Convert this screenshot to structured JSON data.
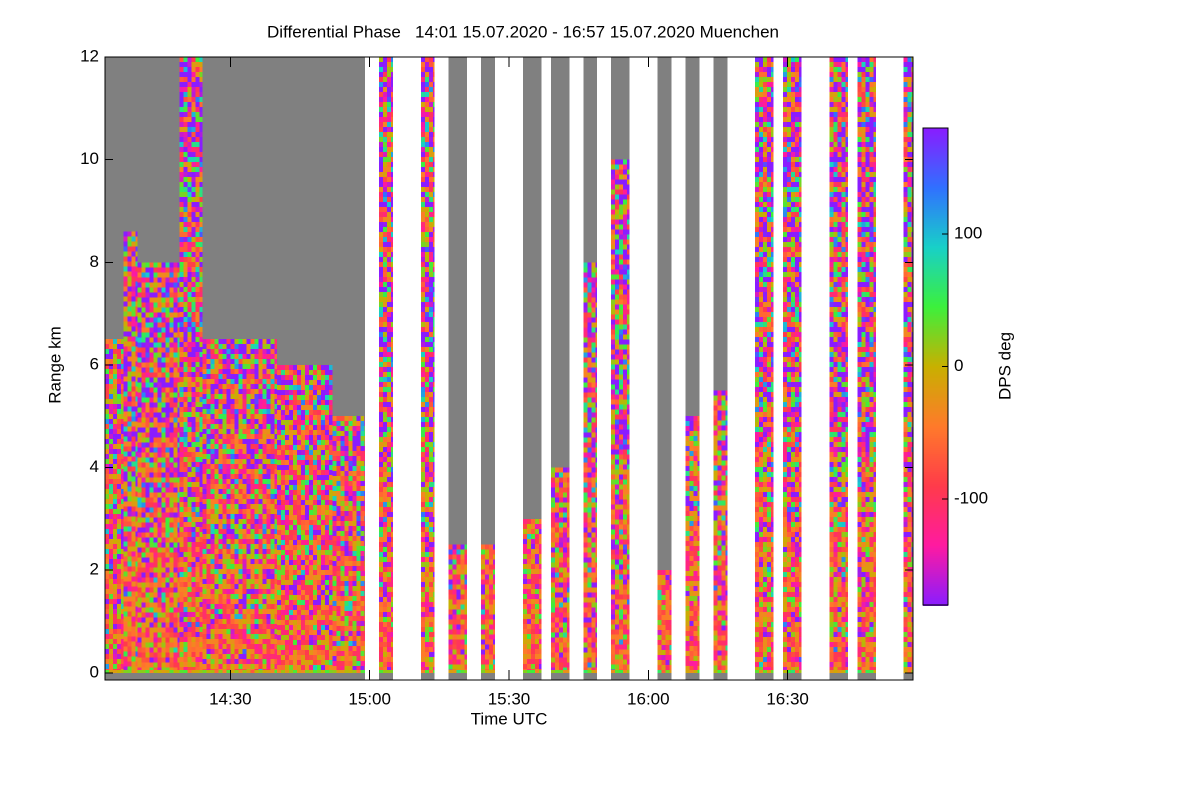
{
  "chart_data": {
    "type": "time-height",
    "title": "Differential Phase   14:01 15.07.2020 - 16:57 15.07.2020 Muenchen",
    "x_label": "Time UTC",
    "y_label": "Range km",
    "colorbar_label": "DPS deg",
    "xlim": [
      "14:03",
      "16:57"
    ],
    "xticks": [
      "14:30",
      "15:00",
      "15:30",
      "16:00",
      "16:30"
    ],
    "ylim": [
      -0.14,
      12
    ],
    "yticks": [
      0,
      2,
      4,
      6,
      8,
      10,
      12
    ],
    "zlim": [
      -180,
      180
    ],
    "zticks": [
      -100,
      0,
      100
    ],
    "colormap": [
      "#8a1cff",
      "#ff1aa0",
      "#ff3b4a",
      "#ff7a2a",
      "#c8b000",
      "#3cf03c",
      "#18d0c8",
      "#3070ff",
      "#8a1cff"
    ],
    "no_echo_color": "#808080",
    "scans": [
      {
        "start": "14:03",
        "end": "14:07",
        "top": 6.5
      },
      {
        "start": "14:07",
        "end": "14:10",
        "top": 8.6
      },
      {
        "start": "14:10",
        "end": "14:19",
        "top": 8.0
      },
      {
        "start": "14:19",
        "end": "14:24",
        "top": 12
      },
      {
        "start": "14:24",
        "end": "14:40",
        "top": 6.5
      },
      {
        "start": "14:40",
        "end": "14:52",
        "top": 6.0
      },
      {
        "start": "14:52",
        "end": "14:59",
        "top": 5.0
      },
      {
        "start": "15:02",
        "end": "15:05",
        "top": 12
      },
      {
        "start": "15:11",
        "end": "15:14",
        "top": 12
      },
      {
        "start": "15:17",
        "end": "15:21",
        "top": 2.5
      },
      {
        "start": "15:24",
        "end": "15:27",
        "top": 2.5
      },
      {
        "start": "15:33",
        "end": "15:37",
        "top": 3.0
      },
      {
        "start": "15:39",
        "end": "15:43",
        "top": 4.0
      },
      {
        "start": "15:46",
        "end": "15:49",
        "top": 8.0
      },
      {
        "start": "15:52",
        "end": "15:56",
        "top": 10.0
      },
      {
        "start": "16:02",
        "end": "16:05",
        "top": 2.0
      },
      {
        "start": "16:08",
        "end": "16:11",
        "top": 5.0
      },
      {
        "start": "16:14",
        "end": "16:17",
        "top": 5.5
      },
      {
        "start": "16:23",
        "end": "16:27",
        "top": 12
      },
      {
        "start": "16:29",
        "end": "16:33",
        "top": 12
      },
      {
        "start": "16:39",
        "end": "16:43",
        "top": 12
      },
      {
        "start": "16:45",
        "end": "16:49",
        "top": 12
      },
      {
        "start": "16:55",
        "end": "16:57",
        "top": 12
      }
    ]
  }
}
